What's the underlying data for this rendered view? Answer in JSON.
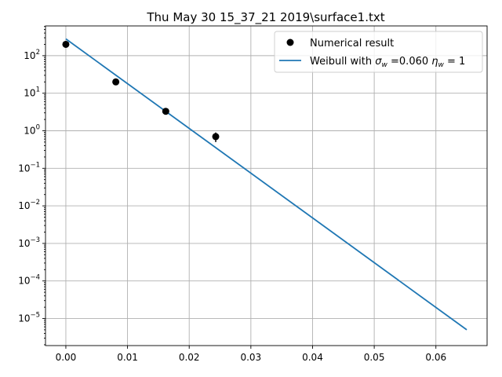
{
  "chart_data": {
    "type": "scatter",
    "title": "Thu May 30 15_37_21 2019\\surface1.txt",
    "xlabel": "",
    "ylabel": "",
    "xlim": [
      -0.0033,
      0.0683
    ],
    "ylim": [
      1.9e-06,
      620
    ],
    "yscale": "log",
    "grid": true,
    "legend_position": "top-right",
    "x_ticks": [
      "0.00",
      "0.01",
      "0.02",
      "0.03",
      "0.04",
      "0.05",
      "0.06"
    ],
    "x_tick_values": [
      0,
      0.01,
      0.02,
      0.03,
      0.04,
      0.05,
      0.06
    ],
    "y_ticks": [
      {
        "value": 100.0,
        "base": "10",
        "exp": "2"
      },
      {
        "value": 10.0,
        "base": "10",
        "exp": "1"
      },
      {
        "value": 1.0,
        "base": "10",
        "exp": "0"
      },
      {
        "value": 0.1,
        "base": "10",
        "exp": "−1"
      },
      {
        "value": 0.01,
        "base": "10",
        "exp": "−2"
      },
      {
        "value": 0.001,
        "base": "10",
        "exp": "−3"
      },
      {
        "value": 0.0001,
        "base": "10",
        "exp": "−4"
      },
      {
        "value": 1e-05,
        "base": "10",
        "exp": "−5"
      }
    ],
    "series": [
      {
        "name": "Numerical result",
        "kind": "points",
        "color": "#000000",
        "x": [
          0.0,
          0.0081,
          0.0162,
          0.0243
        ],
        "y": [
          200,
          20,
          3.3,
          0.7
        ],
        "y_err": [
          0,
          0,
          0.5,
          0.2
        ]
      },
      {
        "name": "Weibull with σw =0.060 ηw = 1",
        "kind": "line",
        "color": "#1f77b4",
        "x": [
          0.0,
          0.065
        ],
        "y": [
          280,
          5e-06
        ]
      }
    ],
    "legend": {
      "entry1": "Numerical result",
      "entry2_prefix": "Weibull with ",
      "entry2_sigma": "σ",
      "entry2_sigma_sub": "w",
      "entry2_mid": " =0.060 ",
      "entry2_eta": "η",
      "entry2_eta_sub": "w",
      "entry2_suffix": " = 1"
    }
  }
}
